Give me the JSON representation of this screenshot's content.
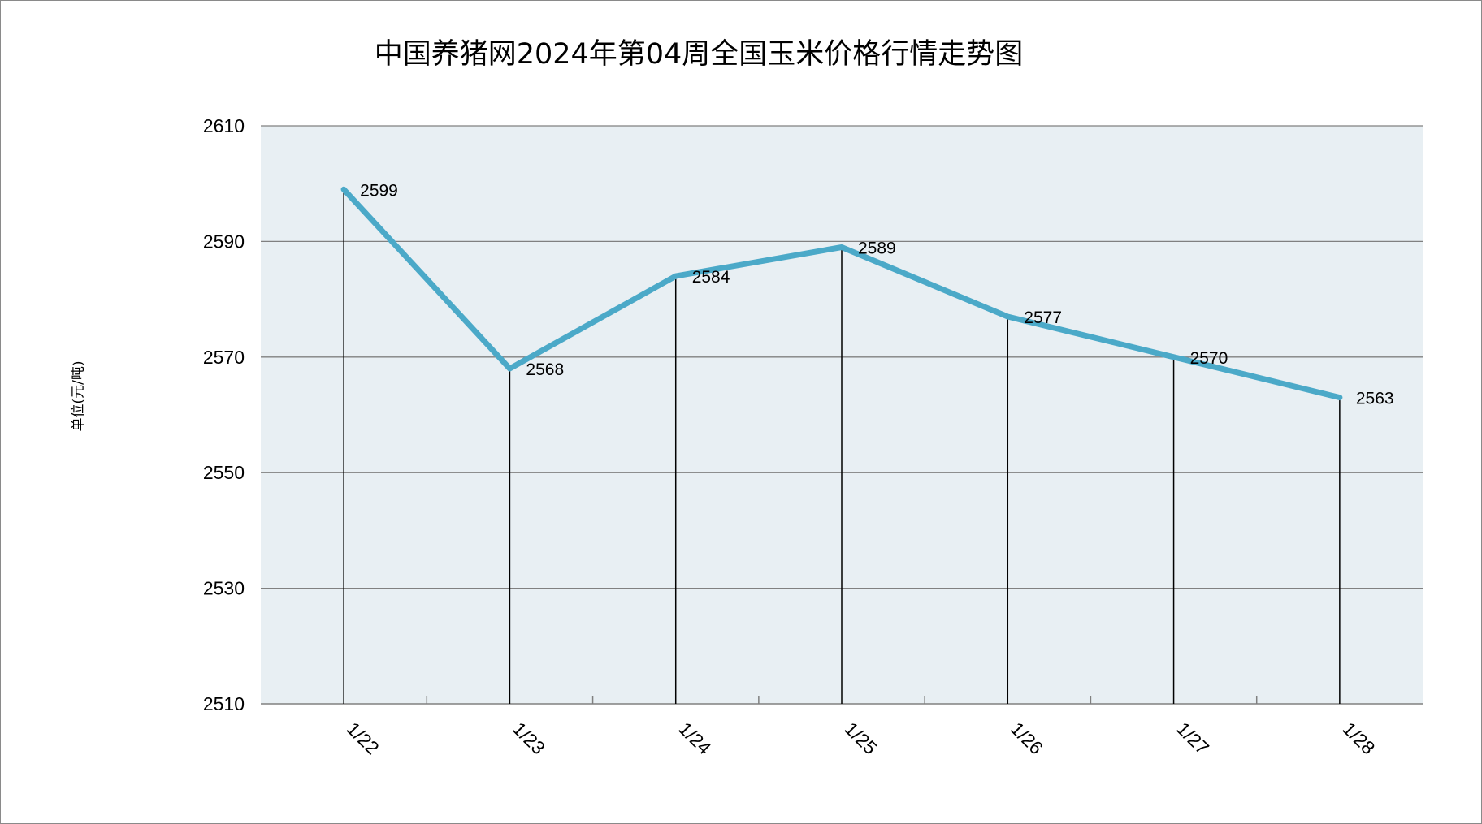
{
  "chart_data": {
    "type": "line",
    "title": "中国养猪网2024年第04周全国玉米价格行情走势图",
    "ylabel": "单位(元/吨)",
    "xlabel": "",
    "categories": [
      "1/22",
      "1/23",
      "1/24",
      "1/25",
      "1/26",
      "1/27",
      "1/28"
    ],
    "values": [
      2599,
      2568,
      2584,
      2589,
      2577,
      2570,
      2563
    ],
    "ylim": [
      2510,
      2610
    ],
    "yticks": [
      2510,
      2530,
      2550,
      2570,
      2590,
      2610
    ],
    "grid": true,
    "legend": "none",
    "data_labels": true,
    "drop_lines": true,
    "x_label_rotation_deg": 45,
    "colors": {
      "line": "#4BA9C8",
      "plot_background": "#E8EFF3",
      "gridline": "#808080",
      "drop_line": "#000000"
    }
  }
}
